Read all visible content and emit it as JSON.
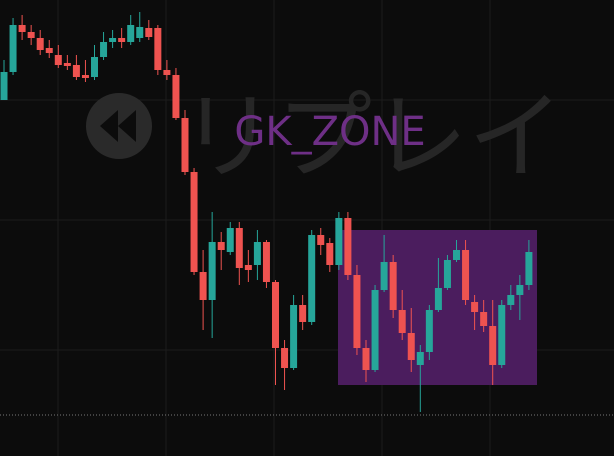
{
  "chart_data": {
    "type": "candlestick",
    "watermark": "リプレイ",
    "zone_label": "GK_ZONE",
    "ylim": [
      0,
      456
    ],
    "up_color": "#26a69a",
    "down_color": "#ef5350",
    "open": [
      356,
      384,
      431,
      424,
      418,
      408,
      401,
      393,
      391,
      381,
      379,
      399,
      414,
      418,
      414,
      418,
      428,
      428,
      386,
      381,
      338,
      284,
      184,
      156,
      214,
      204,
      228,
      191,
      191,
      214,
      174,
      108,
      88,
      151,
      134,
      221,
      213,
      191,
      238,
      181,
      108,
      86,
      166,
      194,
      146,
      123,
      91,
      104,
      146,
      168,
      196,
      206,
      154,
      144,
      130,
      91,
      151,
      161,
      171
    ],
    "high": [
      396,
      438,
      441,
      431,
      426,
      416,
      411,
      401,
      401,
      396,
      411,
      424,
      426,
      428,
      441,
      444,
      436,
      431,
      396,
      388,
      346,
      288,
      206,
      244,
      224,
      234,
      234,
      206,
      226,
      216,
      176,
      116,
      161,
      161,
      226,
      228,
      218,
      244,
      244,
      191,
      116,
      171,
      221,
      201,
      166,
      148,
      111,
      151,
      198,
      201,
      216,
      216,
      161,
      156,
      156,
      156,
      171,
      181,
      216
    ],
    "low": [
      356,
      381,
      416,
      411,
      401,
      398,
      388,
      386,
      376,
      374,
      376,
      396,
      408,
      408,
      411,
      414,
      416,
      381,
      376,
      336,
      281,
      181,
      126,
      118,
      186,
      201,
      171,
      174,
      176,
      168,
      71,
      66,
      86,
      126,
      131,
      201,
      184,
      186,
      176,
      101,
      74,
      84,
      164,
      138,
      116,
      84,
      44,
      96,
      144,
      166,
      194,
      151,
      126,
      124,
      71,
      88,
      146,
      136,
      166
    ],
    "close": [
      384,
      431,
      424,
      418,
      406,
      403,
      391,
      390,
      379,
      378,
      399,
      414,
      418,
      414,
      431,
      429,
      419,
      386,
      381,
      338,
      284,
      184,
      156,
      214,
      206,
      228,
      188,
      186,
      214,
      174,
      108,
      88,
      151,
      134,
      221,
      211,
      191,
      238,
      181,
      108,
      86,
      166,
      194,
      146,
      123,
      96,
      104,
      146,
      168,
      196,
      206,
      156,
      144,
      130,
      91,
      151,
      161,
      171,
      204
    ]
  }
}
